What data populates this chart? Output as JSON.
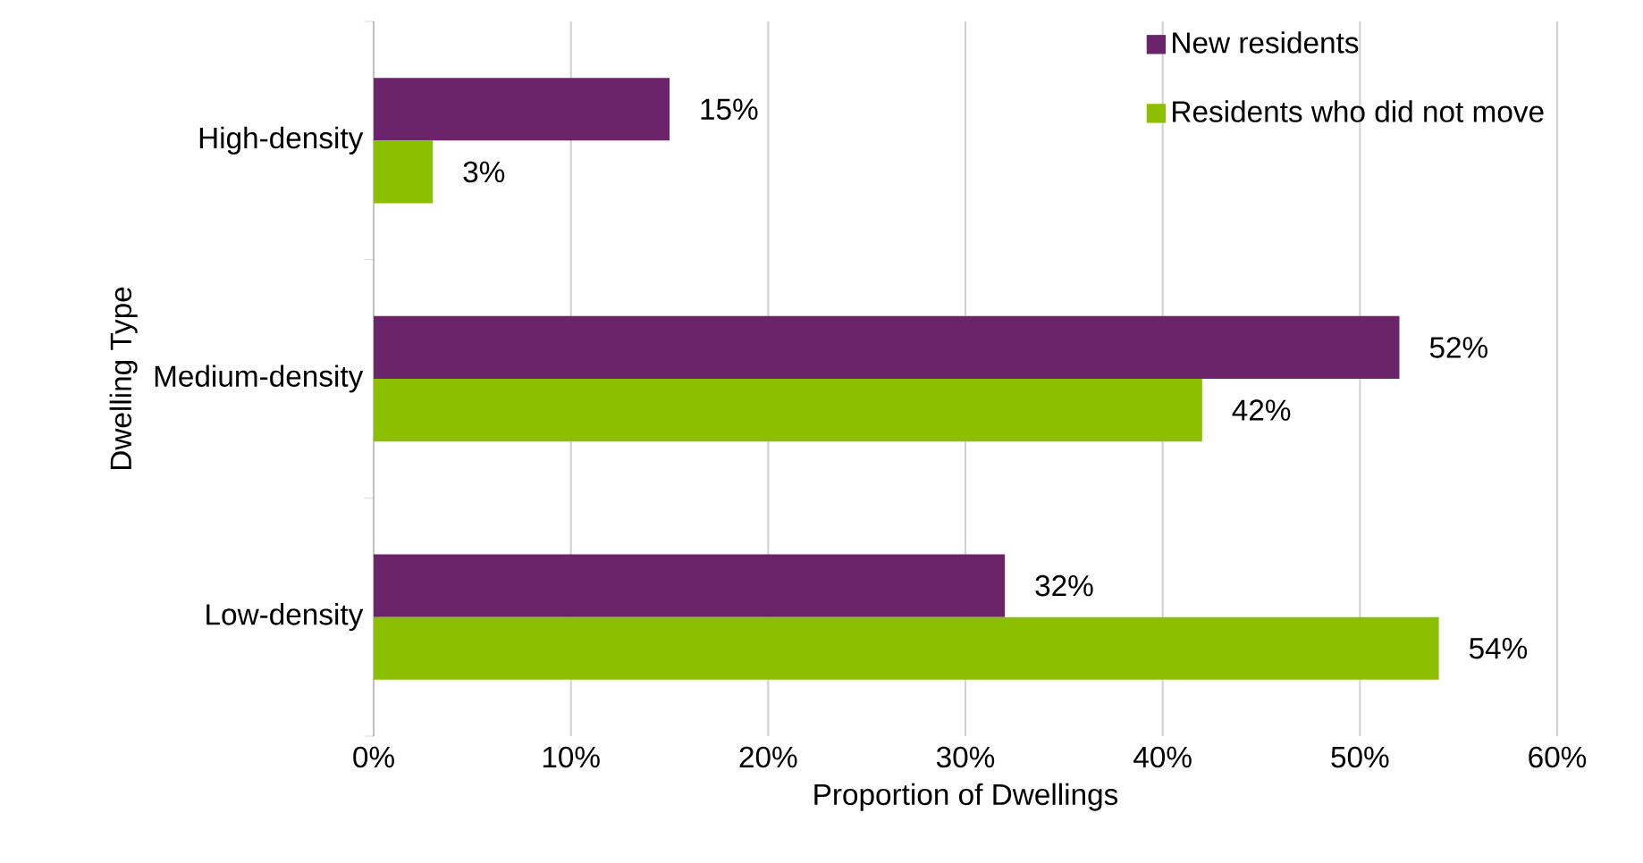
{
  "chart_data": {
    "type": "bar",
    "orientation": "horizontal",
    "categories": [
      "High-density",
      "Medium-density",
      "Low-density"
    ],
    "series": [
      {
        "name": "New residents",
        "color": "#6b2369",
        "values": [
          15,
          52,
          32
        ],
        "value_labels": [
          "15%",
          "52%",
          "32%"
        ]
      },
      {
        "name": "Residents who did not move",
        "color": "#8cbf00",
        "values": [
          3,
          42,
          54
        ],
        "value_labels": [
          "3%",
          "42%",
          "54%"
        ]
      }
    ],
    "xlim": [
      0,
      60
    ],
    "xticks": [
      {
        "value": 0,
        "label": "0%"
      },
      {
        "value": 10,
        "label": "10%"
      },
      {
        "value": 20,
        "label": "20%"
      },
      {
        "value": 30,
        "label": "30%"
      },
      {
        "value": 40,
        "label": "40%"
      },
      {
        "value": 50,
        "label": "50%"
      },
      {
        "value": 60,
        "label": "60%"
      }
    ],
    "xlabel": "Proportion of Dwellings",
    "ylabel": "Dwelling Type",
    "grid": "x",
    "legend": "top right"
  }
}
